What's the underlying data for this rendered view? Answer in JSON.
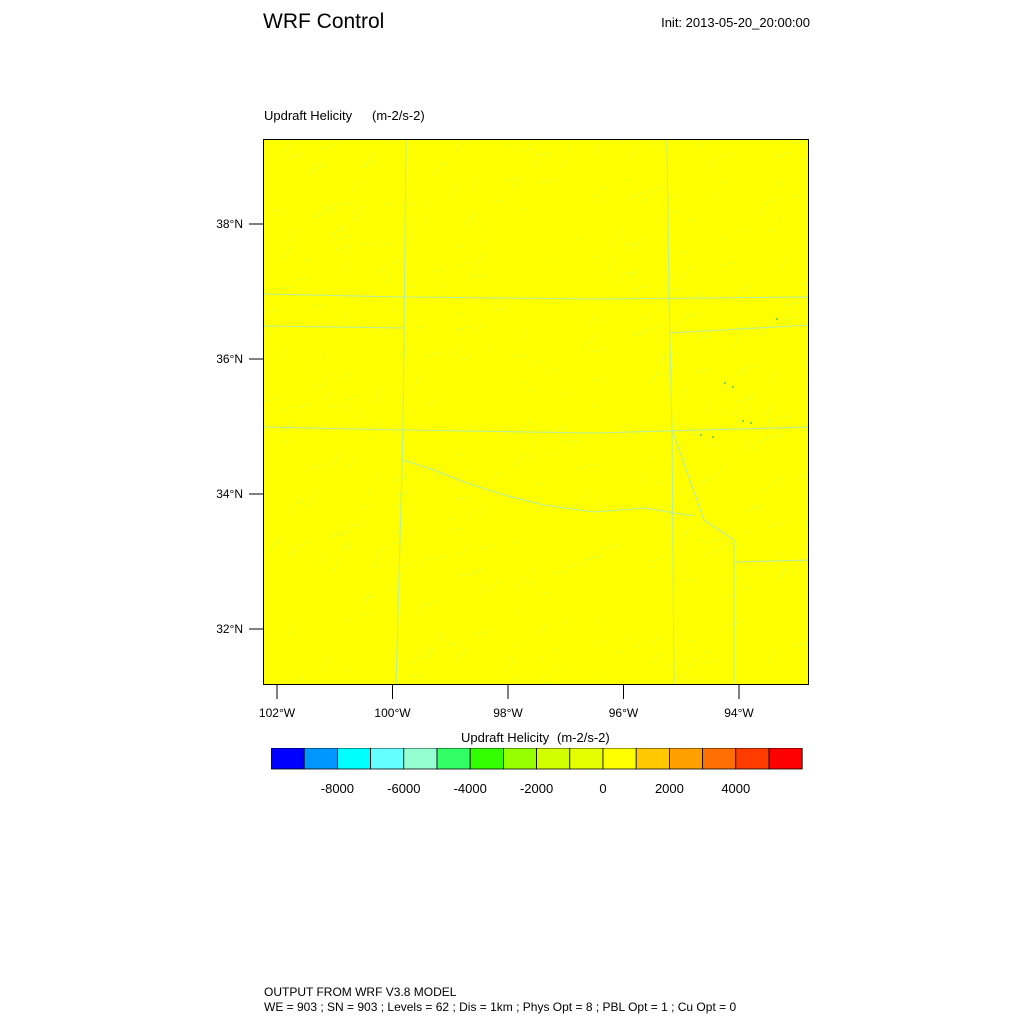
{
  "header": {
    "title": "WRF Control",
    "init": "Init: 2013-05-20_20:00:00"
  },
  "field": {
    "name": "Updraft Helicity",
    "units": "(m-2/s-2)"
  },
  "map": {
    "background_color": "#ffff00",
    "texture_color": "#d8ff3a",
    "boundary_color": "#b9ee9a",
    "lat_ticks": [
      {
        "value": 38,
        "label": "38°N"
      },
      {
        "value": 36,
        "label": "36°N"
      },
      {
        "value": 34,
        "label": "34°N"
      },
      {
        "value": 32,
        "label": "32°N"
      }
    ],
    "lon_ticks": [
      {
        "value": -102,
        "label": "102°W"
      },
      {
        "value": -100,
        "label": "100°W"
      },
      {
        "value": -98,
        "label": "98°W"
      },
      {
        "value": -96,
        "label": "96°W"
      },
      {
        "value": -94,
        "label": "94°W"
      }
    ]
  },
  "colorbar": {
    "title": "Updraft Helicity",
    "units": "(m-2/s-2)",
    "colors": [
      "#0000ff",
      "#0096ff",
      "#00ffff",
      "#64ffff",
      "#96ffd2",
      "#32ff64",
      "#32ff00",
      "#96ff00",
      "#d2ff00",
      "#e6ff00",
      "#ffff00",
      "#ffc800",
      "#ffa000",
      "#ff6e00",
      "#ff3c00",
      "#ff0000"
    ],
    "labels": [
      {
        "value": -8000,
        "label": "-8000"
      },
      {
        "value": -6000,
        "label": "-6000"
      },
      {
        "value": -4000,
        "label": "-4000"
      },
      {
        "value": -2000,
        "label": "-2000"
      },
      {
        "value": 0,
        "label": "0"
      },
      {
        "value": 2000,
        "label": "2000"
      },
      {
        "value": 4000,
        "label": "4000"
      }
    ]
  },
  "footer": {
    "line1": "OUTPUT FROM WRF V3.8 MODEL",
    "line2": "WE = 903 ; SN = 903 ; Levels = 62 ; Dis = 1km ; Phys Opt = 8 ; PBL Opt = 1 ; Cu Opt = 0"
  }
}
